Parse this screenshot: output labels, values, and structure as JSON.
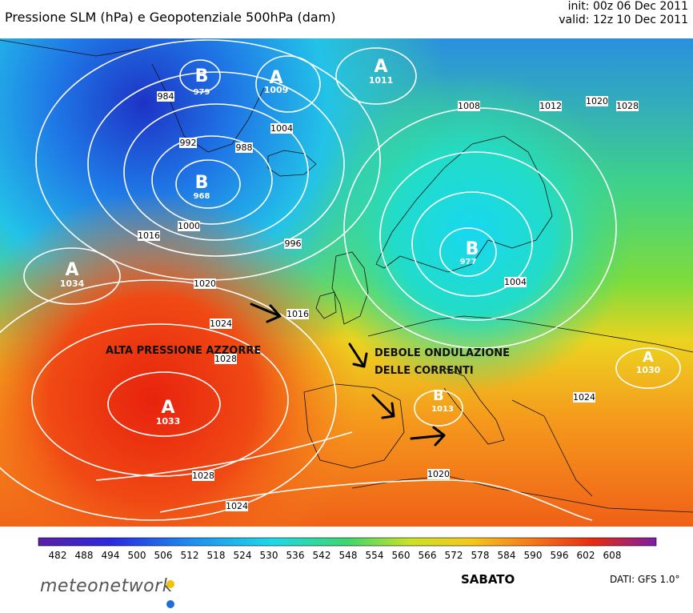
{
  "header": {
    "title": "Pressione SLM (hPa) e Geopotenziale 500hPa (dam)",
    "init": "init: 00z 06 Dec 2011",
    "valid": "valid: 12z 10 Dec 2011"
  },
  "map": {
    "centers": [
      {
        "type": "B",
        "value": "979"
      },
      {
        "type": "A",
        "value": "1009"
      },
      {
        "type": "A",
        "value": "1011"
      },
      {
        "type": "B",
        "value": "968"
      },
      {
        "type": "A",
        "value": "1034"
      },
      {
        "type": "A",
        "value": "1033"
      },
      {
        "type": "B",
        "value": "977"
      },
      {
        "type": "B",
        "value": "1013"
      },
      {
        "type": "A",
        "value": "1030"
      }
    ],
    "isobar_labels": [
      "984",
      "992",
      "988",
      "1004",
      "1008",
      "1012",
      "1020",
      "1028",
      "1016",
      "1024",
      "1000",
      "996",
      "1004",
      "1016",
      "1020",
      "1028",
      "1024",
      "1028",
      "1024",
      "1020"
    ],
    "annotations": [
      "ALTA PRESSIONE AZZORRE",
      "DEBOLE ONDULAZIONE",
      "DELLE CORRENTI"
    ]
  },
  "colorbar": {
    "ticks": [
      "482",
      "488",
      "494",
      "500",
      "506",
      "512",
      "518",
      "524",
      "530",
      "536",
      "542",
      "548",
      "554",
      "560",
      "566",
      "572",
      "578",
      "584",
      "590",
      "596",
      "602",
      "608"
    ]
  },
  "footer": {
    "logo": "meteonetwork",
    "day": "SABATO",
    "credits": "DATI:  GFS  1.0°"
  },
  "colors": {
    "low_geopotential": "#1a3fc8",
    "mid_geopotential": "#3ed04c",
    "high_geopotential": "#e93a12",
    "isobars": "#ffffff",
    "arrows": "#000000",
    "logo_dot_yellow": "#f2c200",
    "logo_dot_blue": "#1f6fd6"
  }
}
